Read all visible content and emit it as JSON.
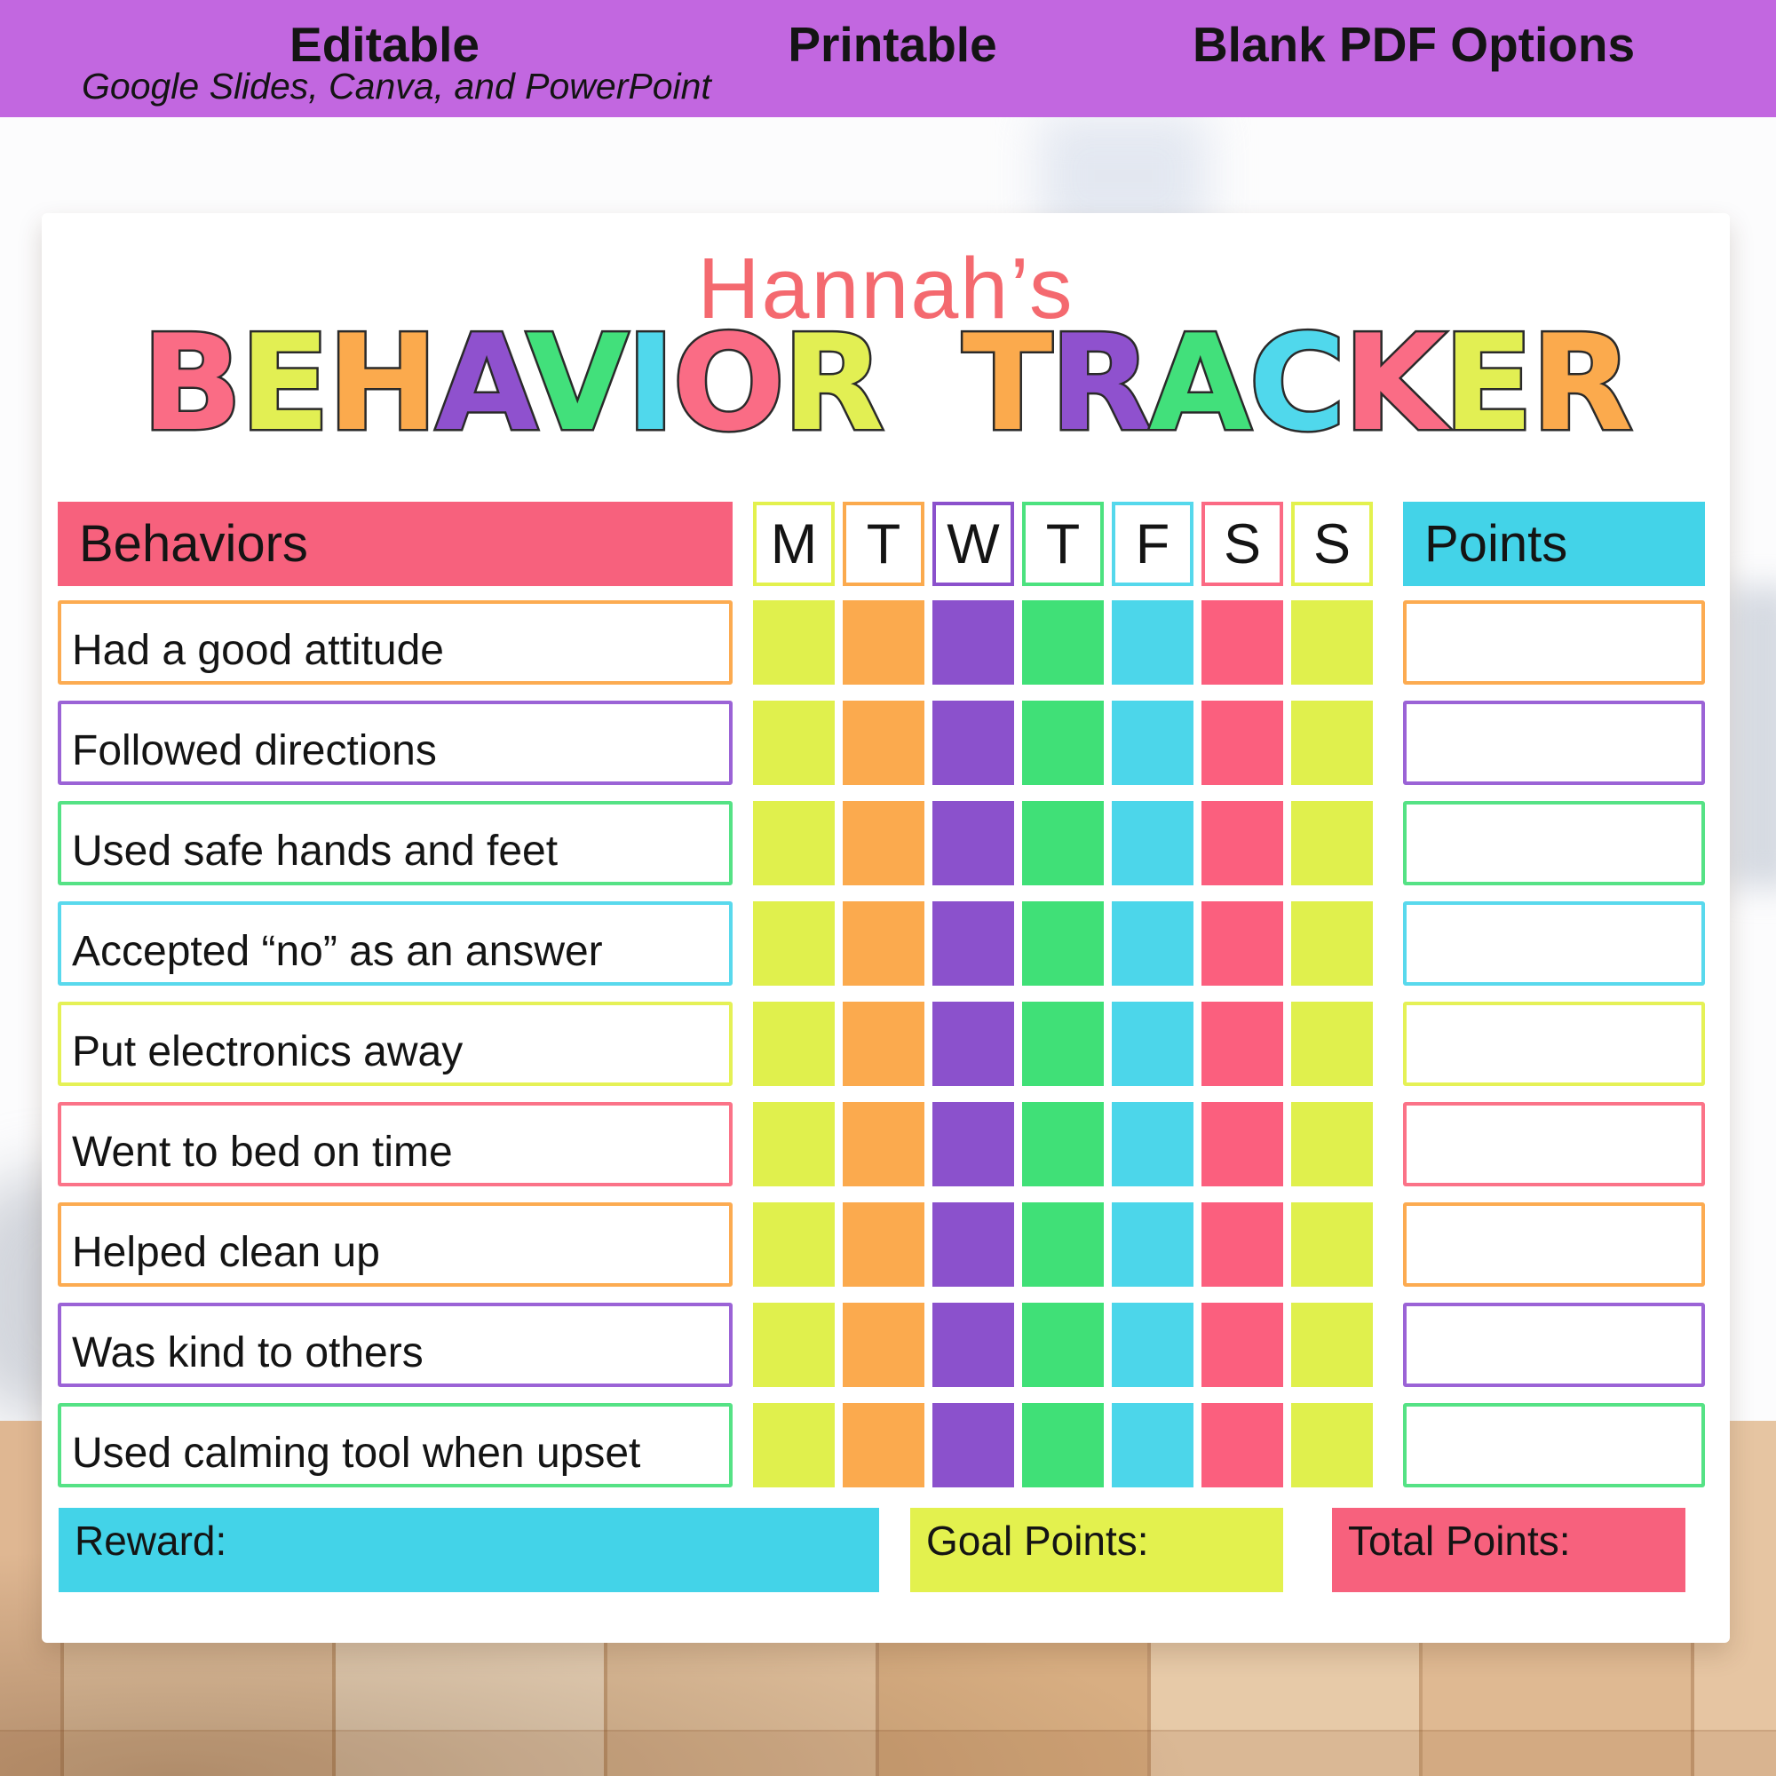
{
  "banner": {
    "bg_color": "#c267e0",
    "items": [
      "Editable",
      "Printable",
      "Blank PDF Options"
    ],
    "subtitle": "Google Slides, Canva, and PowerPoint"
  },
  "title": {
    "name": "Hannah’s",
    "name_color": "#f4696f",
    "letters_word1": [
      {
        "ch": "B",
        "color": "#fa6c85"
      },
      {
        "ch": "E",
        "color": "#e2ef53"
      },
      {
        "ch": "H",
        "color": "#fbaa4d"
      },
      {
        "ch": "A",
        "color": "#8f51ce"
      },
      {
        "ch": "V",
        "color": "#42e07b"
      },
      {
        "ch": "I",
        "color": "#50d8ec"
      },
      {
        "ch": "O",
        "color": "#fa6c85"
      },
      {
        "ch": "R",
        "color": "#e2ef53"
      }
    ],
    "letters_word2": [
      {
        "ch": "T",
        "color": "#fbaa4d"
      },
      {
        "ch": "R",
        "color": "#8f51ce"
      },
      {
        "ch": "A",
        "color": "#42e07b"
      },
      {
        "ch": "C",
        "color": "#50d8ec"
      },
      {
        "ch": "K",
        "color": "#fa6c85"
      },
      {
        "ch": "E",
        "color": "#e2ef53"
      },
      {
        "ch": "R",
        "color": "#fbaa4d"
      }
    ]
  },
  "table": {
    "behaviors_header": {
      "label": "Behaviors",
      "bg_color": "#f7617d"
    },
    "points_header": {
      "label": "Points",
      "bg_color": "#43d3e8"
    },
    "days": [
      {
        "label": "M",
        "border_color": "#e3f14e"
      },
      {
        "label": "T",
        "border_color": "#fbaa4e"
      },
      {
        "label": "W",
        "border_color": "#8b51cc"
      },
      {
        "label": "T",
        "border_color": "#4ce27f"
      },
      {
        "label": "F",
        "border_color": "#55d8ec"
      },
      {
        "label": "S",
        "border_color": "#fb6a84"
      },
      {
        "label": "S",
        "border_color": "#e3f14e"
      }
    ],
    "square_colors": [
      "#e0f04d",
      "#fbaa4e",
      "#8b51cc",
      "#40e077",
      "#4cd6ea",
      "#fb5f7e",
      "#e0f04d"
    ],
    "rows": [
      {
        "label": "Had a good attitude",
        "border_color": "#fcab51"
      },
      {
        "label": "Followed directions",
        "border_color": "#9b63d6"
      },
      {
        "label": "Used safe hands and feet",
        "border_color": "#55e285"
      },
      {
        "label": "Accepted “no” as an answer",
        "border_color": "#59d9ed"
      },
      {
        "label": "Put electronics away",
        "border_color": "#e5f156"
      },
      {
        "label": "Went to bed on time",
        "border_color": "#fb7388"
      },
      {
        "label": "Helped clean up",
        "border_color": "#fcab51"
      },
      {
        "label": "Was kind to others",
        "border_color": "#9b63d6"
      },
      {
        "label": "Used calming tool when upset",
        "border_color": "#55e285"
      }
    ]
  },
  "footer": {
    "reward": {
      "label": "Reward:",
      "bg_color": "#43d3e8"
    },
    "goal": {
      "label": "Goal Points:",
      "bg_color": "#e3f14e"
    },
    "total": {
      "label": "Total Points:",
      "bg_color": "#f7617d"
    }
  }
}
